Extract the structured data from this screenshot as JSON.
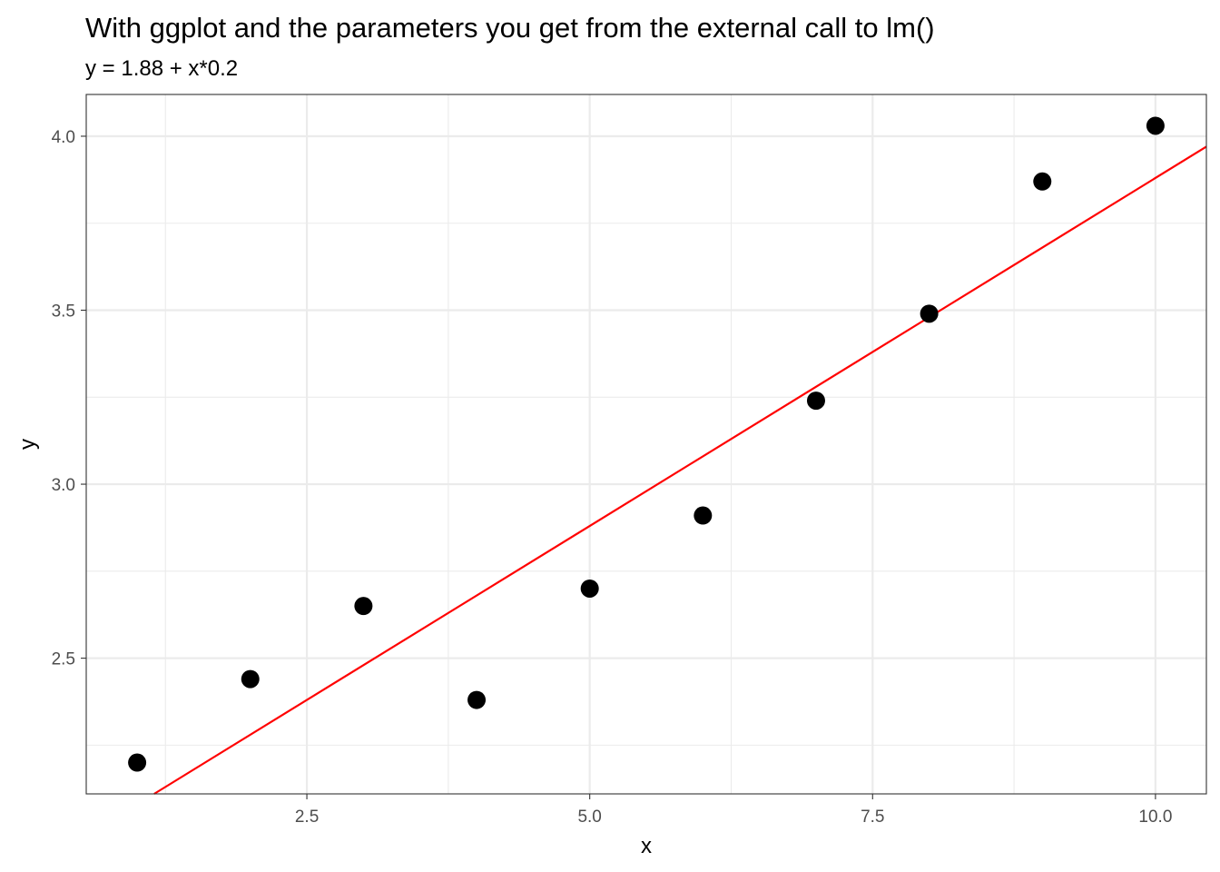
{
  "chart_data": {
    "type": "scatter",
    "title": "With ggplot and the parameters you get from the external call to lm()",
    "subtitle": "y = 1.88 + x*0.2",
    "xlabel": "x",
    "ylabel": "y",
    "xlim": [
      0.55,
      10.45
    ],
    "ylim": [
      2.11,
      4.12
    ],
    "x_ticks": [
      2.5,
      5.0,
      7.5,
      10.0
    ],
    "x_tick_labels": [
      "2.5",
      "5.0",
      "7.5",
      "10.0"
    ],
    "x_minor": [
      1.25,
      3.75,
      6.25,
      8.75
    ],
    "y_ticks": [
      2.5,
      3.0,
      3.5,
      4.0
    ],
    "y_tick_labels": [
      "2.5",
      "3.0",
      "3.5",
      "4.0"
    ],
    "y_minor": [
      2.25,
      2.75,
      3.25,
      3.75
    ],
    "grid": true,
    "points": {
      "x": [
        1,
        2,
        3,
        4,
        5,
        6,
        7,
        8,
        9,
        10
      ],
      "y": [
        2.2,
        2.44,
        2.65,
        2.38,
        2.7,
        2.91,
        3.24,
        3.49,
        3.87,
        4.03
      ],
      "color": "#000000"
    },
    "line": {
      "intercept": 1.88,
      "slope": 0.2,
      "color": "#ff0000"
    }
  }
}
